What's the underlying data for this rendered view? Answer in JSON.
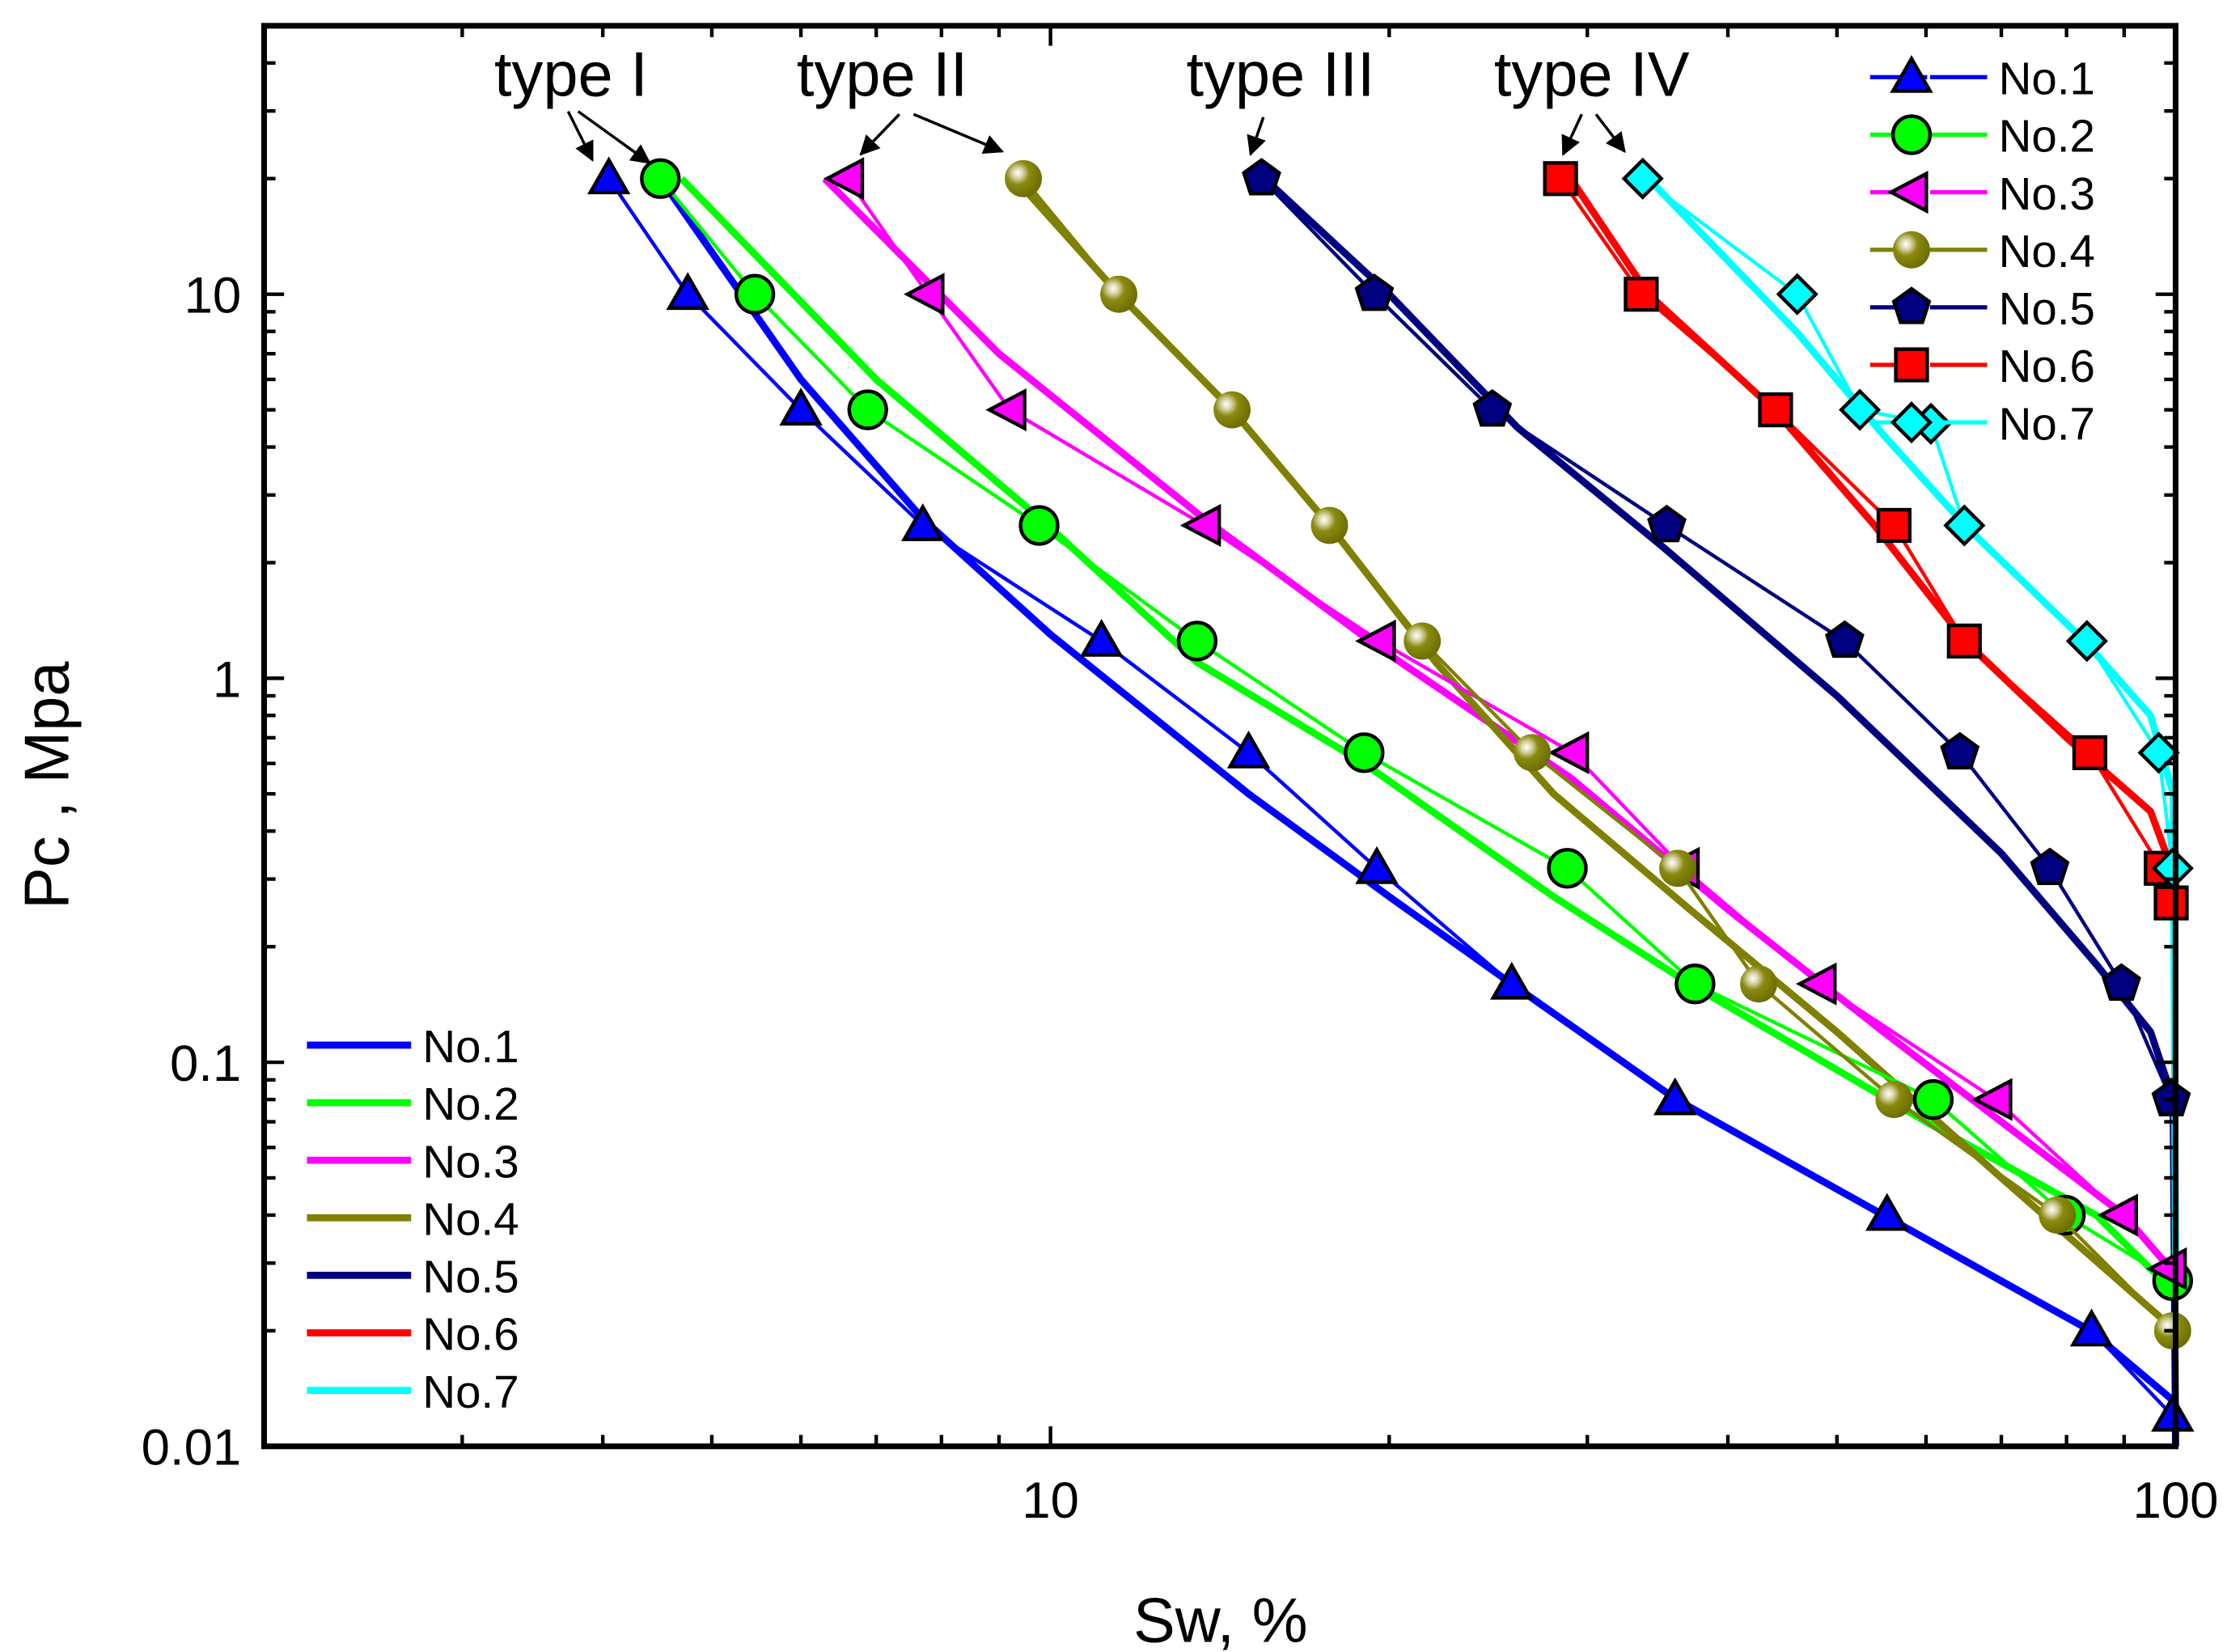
{
  "chart_data": {
    "type": "line",
    "title": "",
    "xlabel": "Sw, %",
    "ylabel": "Pc , Mpa",
    "xscale": "log",
    "yscale": "log",
    "xlim": [
      2,
      100
    ],
    "ylim": [
      0.01,
      50
    ],
    "x_ticks": [
      {
        "value": 10,
        "label": "10"
      },
      {
        "value": 100,
        "label": "100"
      }
    ],
    "y_ticks": [
      {
        "value": 0.01,
        "label": "0.01"
      },
      {
        "value": 0.1,
        "label": "0.1"
      },
      {
        "value": 1,
        "label": "1"
      },
      {
        "value": 10,
        "label": "10"
      }
    ],
    "grid": false,
    "legend_markers_placement": "top-right",
    "legend_fits_placement": "bottom-left",
    "annotations": [
      {
        "text": "type I",
        "targets": [
          "No.1",
          "No.2"
        ]
      },
      {
        "text": "type II",
        "targets": [
          "No.3",
          "No.4"
        ]
      },
      {
        "text": "type III",
        "targets": [
          "No.5"
        ]
      },
      {
        "text": "type IV",
        "targets": [
          "No.6",
          "No.7"
        ]
      }
    ],
    "series": [
      {
        "name": "No.1",
        "color": "#0000ff",
        "marker": "triangle-up",
        "points": [
          [
            4.05,
            20
          ],
          [
            4.76,
            10
          ],
          [
            6.0,
            5
          ],
          [
            7.7,
            2.5
          ],
          [
            11.1,
            1.25
          ],
          [
            15.0,
            0.64
          ],
          [
            19.5,
            0.32
          ],
          [
            25.7,
            0.16
          ],
          [
            35.9,
            0.08
          ],
          [
            55.4,
            0.04
          ],
          [
            84.2,
            0.02
          ],
          [
            99.4,
            0.012
          ]
        ],
        "fit": [
          [
            4.5,
            20
          ],
          [
            6,
            6
          ],
          [
            7.7,
            2.6
          ],
          [
            10,
            1.3
          ],
          [
            15,
            0.5
          ],
          [
            20,
            0.27
          ],
          [
            25.7,
            0.16
          ],
          [
            36,
            0.08
          ],
          [
            55,
            0.04
          ],
          [
            84,
            0.02
          ],
          [
            100,
            0.013
          ]
        ]
      },
      {
        "name": "No.2",
        "color": "#00ff00",
        "marker": "circle",
        "points": [
          [
            4.5,
            20
          ],
          [
            5.46,
            10
          ],
          [
            6.88,
            5
          ],
          [
            9.77,
            2.5
          ],
          [
            13.5,
            1.25
          ],
          [
            19.0,
            0.64
          ],
          [
            28.8,
            0.32
          ],
          [
            37.4,
            0.16
          ],
          [
            60.9,
            0.08
          ],
          [
            79.8,
            0.04
          ],
          [
            99.4,
            0.027
          ]
        ],
        "fit": [
          [
            4.7,
            20
          ],
          [
            7,
            6
          ],
          [
            9.8,
            2.6
          ],
          [
            13.5,
            1.1
          ],
          [
            19,
            0.6
          ],
          [
            28,
            0.27
          ],
          [
            37,
            0.16
          ],
          [
            60,
            0.07
          ],
          [
            85,
            0.04
          ],
          [
            100,
            0.025
          ]
        ]
      },
      {
        "name": "No.3",
        "color": "#ff00ff",
        "marker": "triangle-left",
        "points": [
          [
            6.6,
            20
          ],
          [
            7.78,
            10
          ],
          [
            9.2,
            5
          ],
          [
            13.7,
            2.5
          ],
          [
            19.6,
            1.25
          ],
          [
            29.1,
            0.64
          ],
          [
            36.5,
            0.32
          ],
          [
            48.3,
            0.16
          ],
          [
            69.2,
            0.08
          ],
          [
            89.5,
            0.04
          ],
          [
            98.9,
            0.029
          ]
        ],
        "fit": [
          [
            6.3,
            20
          ],
          [
            9,
            7
          ],
          [
            13.7,
            2.6
          ],
          [
            19.6,
            1.2
          ],
          [
            29,
            0.55
          ],
          [
            40,
            0.25
          ],
          [
            55,
            0.12
          ],
          [
            75,
            0.06
          ],
          [
            90,
            0.04
          ],
          [
            100,
            0.028
          ]
        ]
      },
      {
        "name": "No.4",
        "color": "#808000",
        "marker": "sphere",
        "points": [
          [
            9.46,
            20
          ],
          [
            11.5,
            10
          ],
          [
            14.5,
            5
          ],
          [
            17.7,
            2.5
          ],
          [
            21.4,
            1.25
          ],
          [
            26.8,
            0.64
          ],
          [
            36.1,
            0.32
          ],
          [
            42.6,
            0.16
          ],
          [
            56.2,
            0.08
          ],
          [
            78.5,
            0.04
          ],
          [
            99.4,
            0.02
          ]
        ],
        "fit": [
          [
            9.3,
            20
          ],
          [
            11.5,
            10
          ],
          [
            14.5,
            5
          ],
          [
            17.7,
            2.5
          ],
          [
            22,
            1.1
          ],
          [
            28,
            0.5
          ],
          [
            37,
            0.25
          ],
          [
            50,
            0.12
          ],
          [
            70,
            0.05
          ],
          [
            100,
            0.02
          ]
        ]
      },
      {
        "name": "No.5",
        "color": "#000080",
        "marker": "pentagon",
        "points": [
          [
            15.4,
            20
          ],
          [
            19.4,
            10
          ],
          [
            24.7,
            5
          ],
          [
            35.3,
            2.5
          ],
          [
            50.8,
            1.25
          ],
          [
            64.3,
            0.64
          ],
          [
            77.3,
            0.32
          ],
          [
            89.5,
            0.16
          ],
          [
            99.1,
            0.08
          ]
        ],
        "fit": [
          [
            15.5,
            20
          ],
          [
            20,
            10
          ],
          [
            26,
            4.5
          ],
          [
            35,
            2.2
          ],
          [
            50,
            0.9
          ],
          [
            70,
            0.35
          ],
          [
            85,
            0.18
          ],
          [
            95,
            0.12
          ],
          [
            99.5,
            0.08
          ],
          [
            100,
            0.01
          ]
        ]
      },
      {
        "name": "No.6",
        "color": "#ff0000",
        "marker": "square",
        "points": [
          [
            28.4,
            20
          ],
          [
            33.5,
            10
          ],
          [
            44.1,
            5
          ],
          [
            56.2,
            2.5
          ],
          [
            64.9,
            1.25
          ],
          [
            83.9,
            0.64
          ],
          [
            97.1,
            0.32
          ],
          [
            99.1,
            0.26
          ]
        ],
        "fit": [
          [
            29,
            20
          ],
          [
            34,
            10
          ],
          [
            44,
            5
          ],
          [
            54,
            2.5
          ],
          [
            65,
            1.25
          ],
          [
            80,
            0.7
          ],
          [
            95,
            0.45
          ],
          [
            100,
            0.3
          ],
          [
            100,
            0.25
          ]
        ]
      },
      {
        "name": "No.7",
        "color": "#00ffff",
        "marker": "diamond",
        "points": [
          [
            33.6,
            20
          ],
          [
            46.1,
            10
          ],
          [
            52.4,
            5
          ],
          [
            60.6,
            4.6
          ],
          [
            64.9,
            2.5
          ],
          [
            83.4,
            1.25
          ],
          [
            96.6,
            0.64
          ],
          [
            99.4,
            0.32
          ]
        ],
        "fit": [
          [
            34,
            20
          ],
          [
            46,
            8
          ],
          [
            55,
            4.3
          ],
          [
            65,
            2.5
          ],
          [
            83,
            1.25
          ],
          [
            95,
            0.8
          ],
          [
            99.5,
            0.5
          ],
          [
            100,
            0.03
          ]
        ]
      }
    ]
  }
}
